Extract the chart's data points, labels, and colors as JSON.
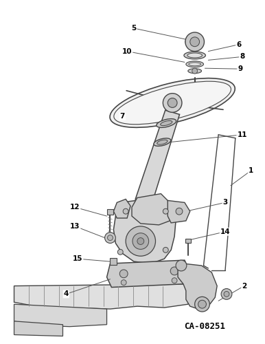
{
  "catalog_number": "CA-08251",
  "background_color": "#ffffff",
  "line_color": "#444444",
  "label_color": "#000000",
  "fig_width": 3.86,
  "fig_height": 5.0,
  "dpi": 100
}
